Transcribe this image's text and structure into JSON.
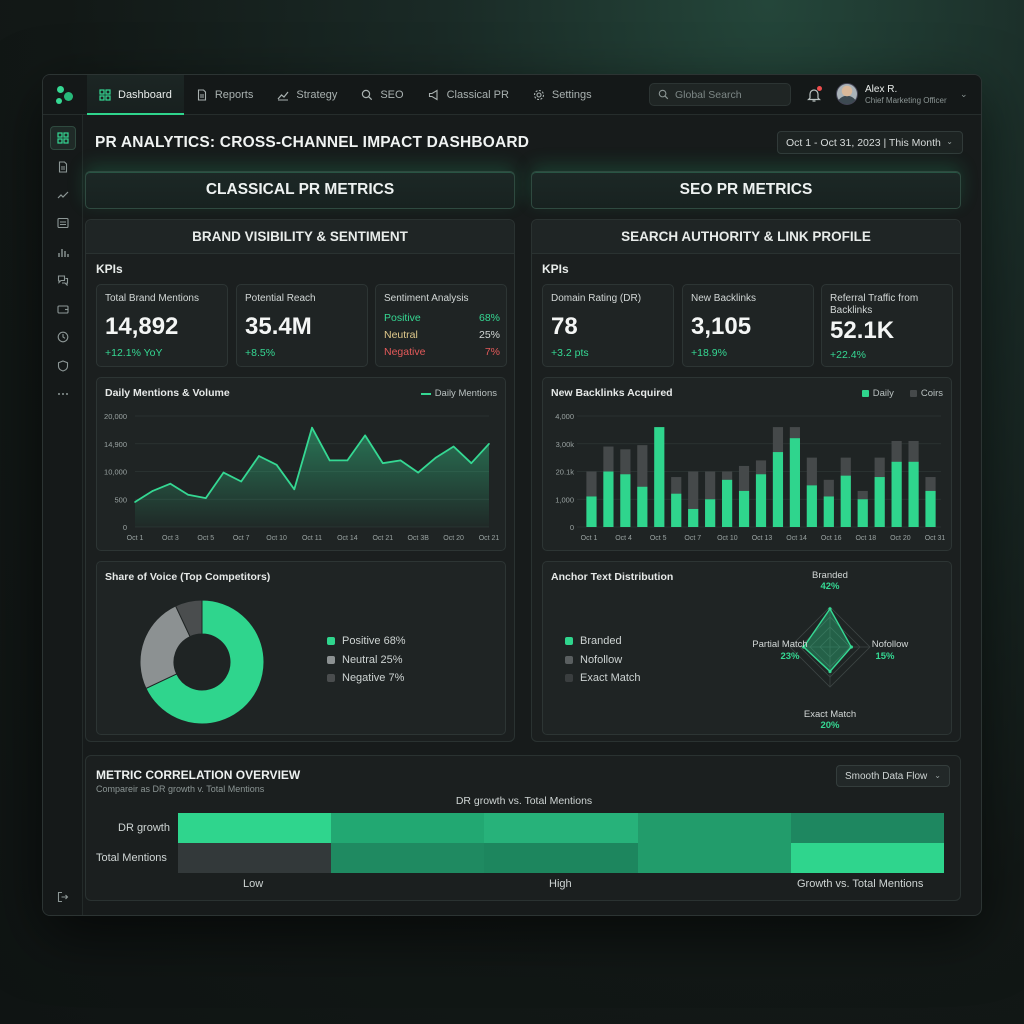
{
  "nav": {
    "items": [
      {
        "label": "Dashboard",
        "icon": "grid-icon"
      },
      {
        "label": "Reports",
        "icon": "document-icon"
      },
      {
        "label": "Strategy",
        "icon": "trend-icon"
      },
      {
        "label": "SEO",
        "icon": "search-icon"
      },
      {
        "label": "Classical PR",
        "icon": "megaphone-icon"
      },
      {
        "label": "Settings",
        "icon": "gear-icon"
      }
    ],
    "active": "Dashboard"
  },
  "search": {
    "placeholder": "Global Search"
  },
  "user": {
    "name": "Alex R.",
    "role": "Chief Marketing Officer"
  },
  "page": {
    "title": "PR ANALYTICS: CROSS-CHANNEL IMPACT DASHBOARD",
    "date_range": "Oct 1 - Oct 31, 2023 | This Month"
  },
  "classical": {
    "section_title": "CLASSICAL PR METRICS",
    "panel_title": "BRAND VISIBILITY & SENTIMENT",
    "kpis_label": "KPIs",
    "kpis": [
      {
        "title": "Total Brand Mentions",
        "value": "14,892",
        "delta": "+12.1% YoY"
      },
      {
        "title": "Potential Reach",
        "value": "35.4M",
        "delta": "+8.5%"
      }
    ],
    "sentiment": {
      "title": "Sentiment Analysis",
      "rows": [
        {
          "label": "Positive",
          "value": "68%",
          "color": "#35d893"
        },
        {
          "label": "Neutral",
          "value": "25%",
          "color": "#e0c98b"
        },
        {
          "label": "Negative",
          "value": "7%",
          "color": "#e45a5a"
        }
      ]
    }
  },
  "seo": {
    "section_title": "SEO PR METRICS",
    "panel_title": "SEARCH AUTHORITY & LINK PROFILE",
    "kpis_label": "KPIs",
    "kpis": [
      {
        "title": "Domain Rating (DR)",
        "value": "78",
        "delta": "+3.2 pts"
      },
      {
        "title": "New Backlinks",
        "value": "3,105",
        "delta": "+18.9%"
      },
      {
        "title": "Referral Traffic from Backlinks",
        "value": "52.1K",
        "delta": "+22.4%"
      }
    ]
  },
  "chart_data": [
    {
      "type": "area",
      "title": "Daily Mentions & Volume",
      "legend": [
        "Daily Mentions"
      ],
      "yticks": [
        "20,000",
        "14,900",
        "10,000",
        "500",
        "0"
      ],
      "xticks": [
        "Oct 1",
        "Oct 3",
        "Oct 5",
        "Oct 7",
        "Oct 10",
        "Oct 11",
        "Oct 14",
        "Oct 21",
        "Oct 3B",
        "Oct 20",
        "Oct 21"
      ],
      "series": [
        {
          "name": "Daily Mentions",
          "values": [
            4500,
            6500,
            7800,
            5800,
            5200,
            9800,
            8200,
            12800,
            11200,
            6800,
            17900,
            12000,
            12000,
            16500,
            11500,
            12000,
            9800,
            12500,
            14500,
            11500,
            15000
          ]
        }
      ],
      "ylim": [
        0,
        20000
      ],
      "color": "#35d893"
    },
    {
      "type": "bar",
      "title": "New Backlinks Acquired",
      "legend": [
        "Daily",
        "Coirs"
      ],
      "yticks": [
        "4,000",
        "3,00k",
        "20.1k",
        "1,000",
        "0"
      ],
      "xticks": [
        "Oct 1",
        "Oct 4",
        "Oct 5",
        "Oct 7",
        "Oct 10",
        "Oct 13",
        "Oct 14",
        "Oct 16",
        "Oct 18",
        "Oct 20",
        "Oct 31"
      ],
      "series": [
        {
          "name": "Daily",
          "values": [
            1100,
            2000,
            1900,
            1450,
            3600,
            1200,
            650,
            1000,
            1700,
            1300,
            1900,
            2700,
            3200,
            1500,
            1100,
            1850,
            1000,
            1800,
            2350,
            2350,
            1300
          ]
        },
        {
          "name": "Coirs",
          "values": [
            2000,
            2900,
            2800,
            2950,
            2000,
            1800,
            2000,
            2000,
            2000,
            2200,
            2400,
            3600,
            3600,
            2500,
            1700,
            2500,
            1300,
            2500,
            3100,
            3100,
            1800
          ]
        }
      ],
      "ylim": [
        0,
        4000
      ],
      "colors": [
        "#2fd58d",
        "#45494a"
      ]
    },
    {
      "type": "pie",
      "title": "Share of Voice (Top Competitors)",
      "slices": [
        {
          "label": "Positive 68%",
          "value": 68,
          "color": "#2fd58d"
        },
        {
          "label": "Neutral 25%",
          "value": 25,
          "color": "#8c9192"
        },
        {
          "label": "Negative 7%",
          "value": 7,
          "color": "#4a4d4e"
        }
      ]
    },
    {
      "type": "radar",
      "title": "Anchor Text Distribution",
      "legend": [
        {
          "label": "Branded",
          "color": "#2fd58d"
        },
        {
          "label": "Nofollow",
          "color": "#5a5f60"
        },
        {
          "label": "Exact Match",
          "color": "#3a3e3f"
        }
      ],
      "axes": [
        {
          "label": "Branded",
          "value": "42%",
          "v": 42
        },
        {
          "label": "Nofollow",
          "value": "15%",
          "v": 15
        },
        {
          "label": "Exact Match",
          "value": "20%",
          "v": 20
        },
        {
          "label": "Partial Match",
          "value": "23%",
          "v": 23
        }
      ]
    },
    {
      "type": "heatmap",
      "title": "METRIC CORRELATION OVERVIEW",
      "subtitle": "Compareir as DR growth v. Total Mentions",
      "heading": "DR growth vs. Total Mentions",
      "rows": [
        "DR growth",
        "Total Mentions"
      ],
      "x_labels": [
        "Low",
        "High",
        "Growth vs. Total Mentions"
      ],
      "cells": [
        [
          "#2fd58d",
          "#22a872",
          "#27b27a",
          "#229c6b",
          "#1e8760"
        ],
        [
          "#33393a",
          "#1f8a61",
          "#1d865e",
          "#229c6b",
          "#2fd58d"
        ]
      ]
    }
  ],
  "correlation": {
    "button": "Smooth Data Flow"
  }
}
